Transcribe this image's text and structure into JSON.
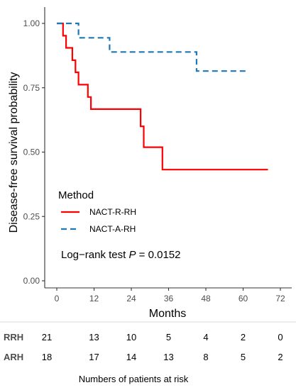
{
  "chart_data": {
    "type": "line",
    "subtype": "kaplan-meier step",
    "xlabel": "Months",
    "ylabel": "Disease-free survival probability",
    "xlim": [
      0,
      72
    ],
    "ylim": [
      0,
      1
    ],
    "x_ticks": [
      "0",
      "12",
      "24",
      "36",
      "48",
      "60",
      "72"
    ],
    "y_ticks": [
      "0.00",
      "0.25",
      "0.50",
      "0.75",
      "1.00"
    ],
    "grid": false,
    "legend": {
      "title": "Method",
      "placement": "bottom-left",
      "entries": [
        "NACT-R-RH",
        "NACT-A-RH"
      ]
    },
    "annotation": {
      "prefix": "Log−rank test ",
      "p_symbol": "P",
      "suffix": " = 0.0152"
    },
    "series": [
      {
        "name": "NACT-R-RH",
        "color": "#ff0000",
        "dash": "solid",
        "points": [
          [
            0,
            1.0
          ],
          [
            2,
            1.0
          ],
          [
            2,
            0.952
          ],
          [
            3,
            0.952
          ],
          [
            3,
            0.905
          ],
          [
            5,
            0.905
          ],
          [
            5,
            0.857
          ],
          [
            6,
            0.857
          ],
          [
            6,
            0.81
          ],
          [
            7,
            0.81
          ],
          [
            7,
            0.762
          ],
          [
            10,
            0.762
          ],
          [
            10,
            0.714
          ],
          [
            11,
            0.714
          ],
          [
            11,
            0.667
          ],
          [
            27,
            0.667
          ],
          [
            27,
            0.6
          ],
          [
            28,
            0.6
          ],
          [
            28,
            0.519
          ],
          [
            34,
            0.519
          ],
          [
            34,
            0.432
          ],
          [
            68,
            0.432
          ]
        ]
      },
      {
        "name": "NACT-A-RH",
        "color": "#1f77b4",
        "dash": "dashed",
        "points": [
          [
            0,
            1.0
          ],
          [
            7,
            1.0
          ],
          [
            7,
            0.944
          ],
          [
            17,
            0.944
          ],
          [
            17,
            0.889
          ],
          [
            45,
            0.889
          ],
          [
            45,
            0.815
          ],
          [
            61,
            0.815
          ]
        ]
      }
    ],
    "risk_table": {
      "title": "Numbers of patients at risk",
      "times": [
        0,
        12,
        24,
        36,
        48,
        60,
        72
      ],
      "rows": [
        {
          "label": "RRH",
          "values": [
            "21",
            "13",
            "10",
            "5",
            "4",
            "2",
            "0"
          ]
        },
        {
          "label": "ARH",
          "values": [
            "18",
            "17",
            "14",
            "13",
            "8",
            "5",
            "2"
          ]
        }
      ]
    }
  }
}
